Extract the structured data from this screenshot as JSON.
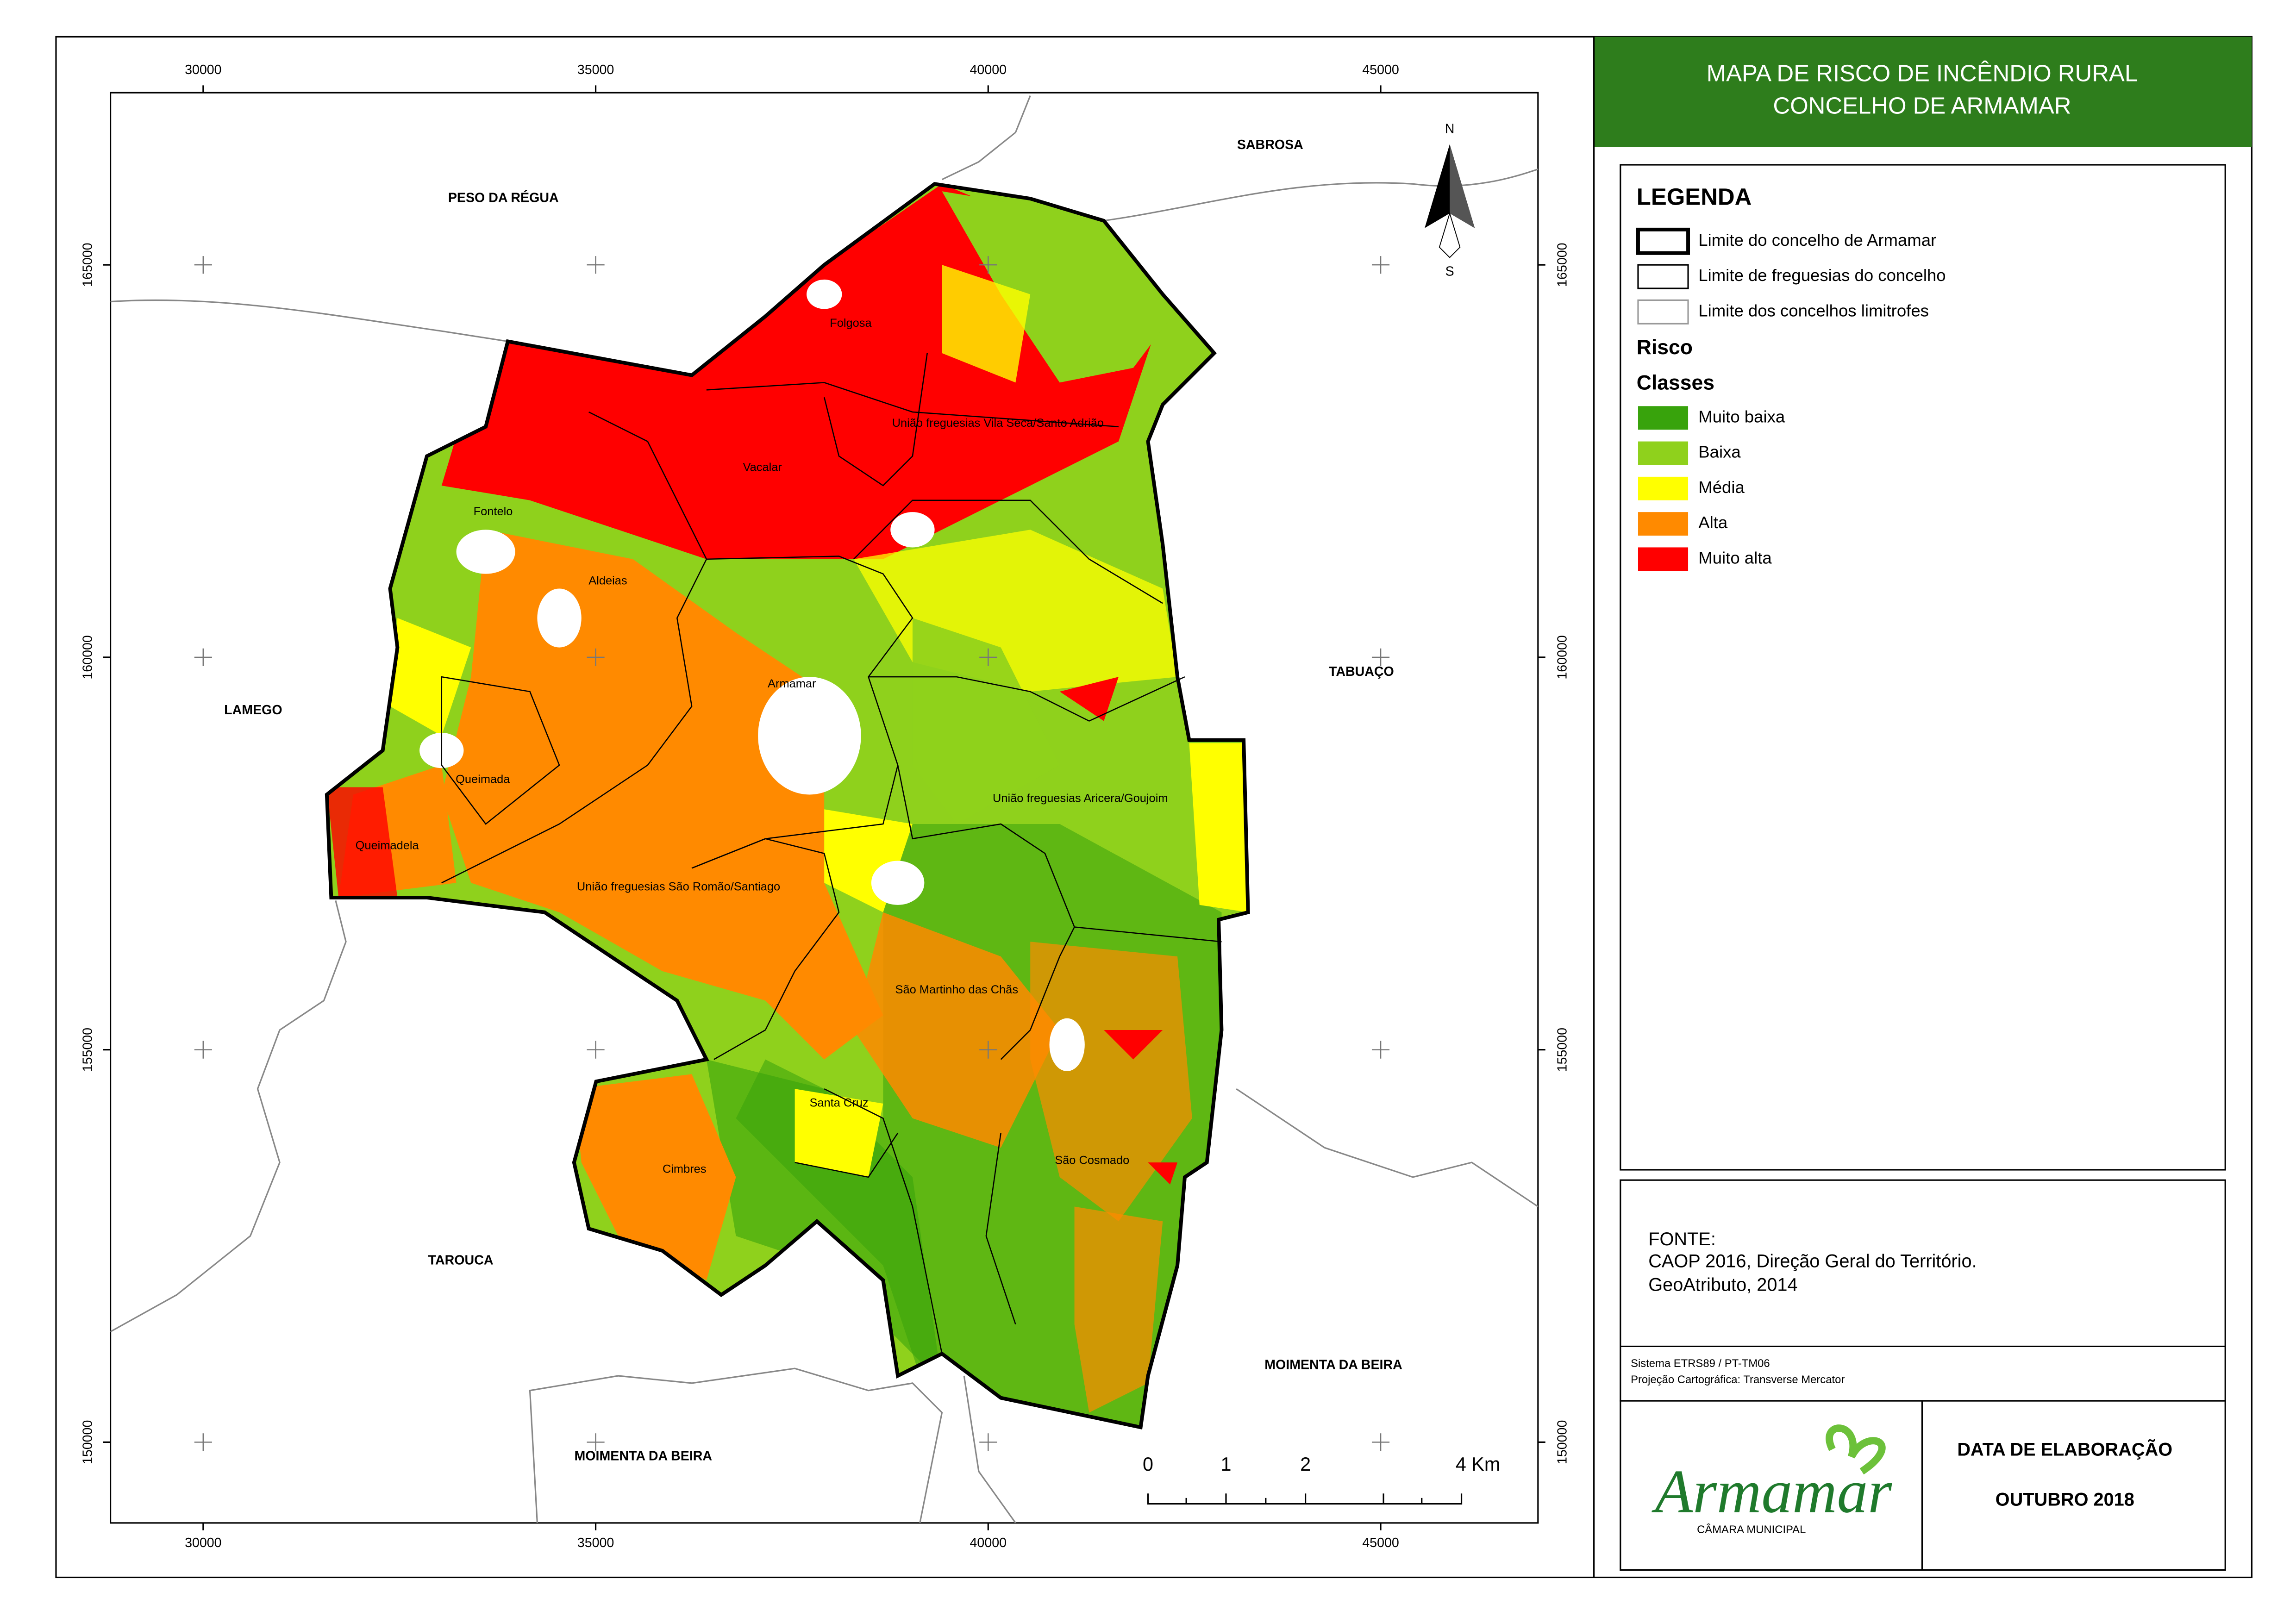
{
  "title": [
    "MAPA DE RISCO DE INCÊNDIO RURAL",
    "CONCELHO DE ARMAMAR"
  ],
  "legend": {
    "heading": "LEGENDA",
    "boundaries": [
      "Limite do concelho de Armamar",
      "Limite de freguesias do concelho",
      "Limite dos concelhos limitrofes"
    ],
    "risk_heading": "Risco",
    "classes_heading": "Classes",
    "classes": [
      {
        "label": "Muito baixa",
        "color": "#38a30c"
      },
      {
        "label": "Baixa",
        "color": "#8fd11c"
      },
      {
        "label": "Média",
        "color": "#ffff00"
      },
      {
        "label": "Alta",
        "color": "#ff8a00"
      },
      {
        "label": "Muito alta",
        "color": "#ff0000"
      }
    ]
  },
  "source": {
    "heading": "FONTE:",
    "lines": [
      "CAOP 2016, Direção Geral do Território.",
      "GeoAtributo, 2014"
    ]
  },
  "projection": [
    "Sistema ETRS89 / PT-TM06",
    "Projeção Cartográfica: Transverse Mercator"
  ],
  "logo": {
    "name": "Armamar",
    "subtitle": "CÂMARA MUNICIPAL"
  },
  "date": {
    "heading": "DATA DE ELABORAÇÃO",
    "value": "OUTUBRO 2018"
  },
  "map": {
    "x_ticks": [
      30000,
      35000,
      40000,
      45000
    ],
    "y_ticks": [
      165000,
      160000,
      155000,
      150000
    ],
    "north": [
      "N",
      "S"
    ],
    "neighbors": [
      "PESO DA RÉGUA",
      "SABROSA",
      "LAMEGO",
      "TABUAÇO",
      "TAROUCA",
      "MOIMENTA DA BEIRA",
      "MOIMENTA DA BEIRA"
    ],
    "parishes": [
      "Folgosa",
      "União freguesias Vila Seca/Santo Adrião",
      "Vacalar",
      "Fontelo",
      "Aldeias",
      "Armamar",
      "Queimada",
      "Queimadela",
      "União freguesias Aricera/Goujoim",
      "União freguesias São Romão/Santiago",
      "São Martinho das Chãs",
      "Santa Cruz",
      "Cimbres",
      "São Cosmado"
    ],
    "scale_bar": [
      "0",
      "1",
      "2",
      "4 Km"
    ]
  }
}
